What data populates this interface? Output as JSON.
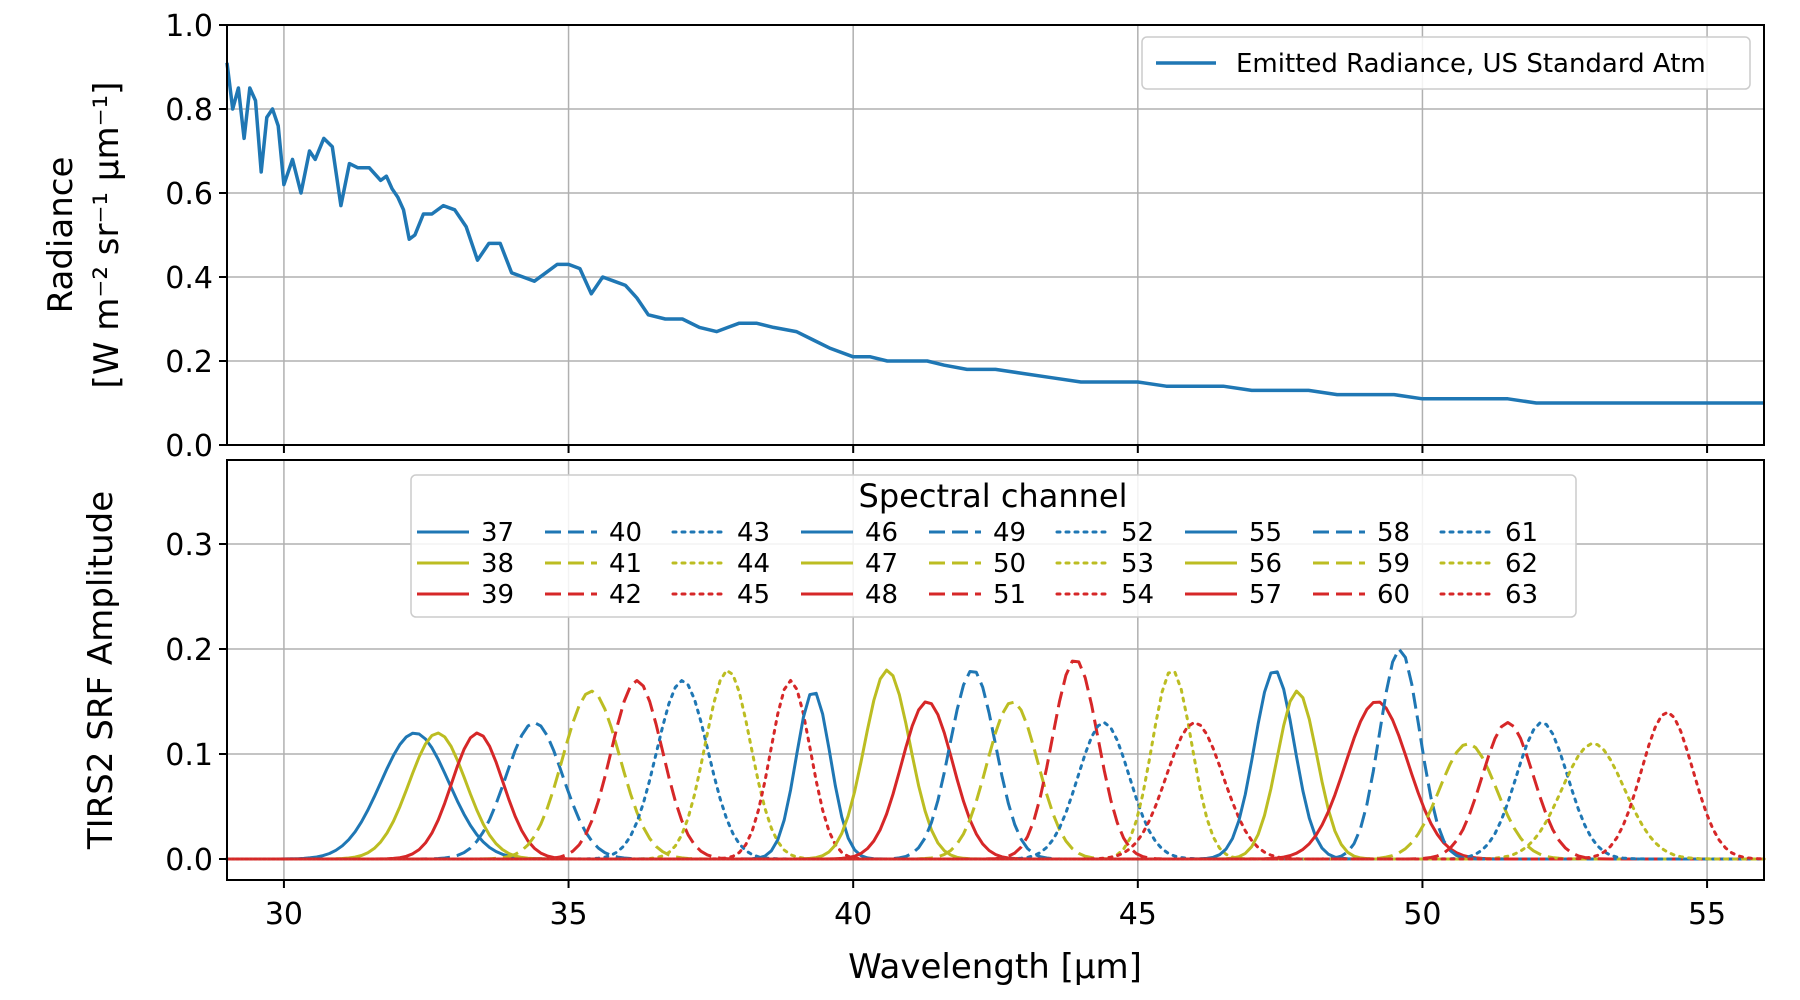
{
  "chart_data": [
    {
      "type": "line",
      "ylabel_line1": "Radiance",
      "ylabel_line2": "[W m⁻² sr⁻¹ μm⁻¹]",
      "xlim": [
        29,
        56
      ],
      "ylim": [
        0,
        1.0
      ],
      "yticks": [
        "0.0",
        "0.2",
        "0.4",
        "0.6",
        "0.8",
        "1.0"
      ],
      "grid": true,
      "legend_position": "top-right",
      "colors": {
        "series": "#1f77b4"
      },
      "series": [
        {
          "name": "Emitted Radiance, US Standard Atm",
          "x": [
            29.0,
            29.1,
            29.2,
            29.3,
            29.4,
            29.5,
            29.6,
            29.7,
            29.8,
            29.9,
            30.0,
            30.15,
            30.3,
            30.45,
            30.55,
            30.7,
            30.85,
            31.0,
            31.15,
            31.3,
            31.5,
            31.7,
            31.8,
            31.9,
            32.0,
            32.1,
            32.2,
            32.3,
            32.45,
            32.6,
            32.8,
            33.0,
            33.2,
            33.4,
            33.6,
            33.8,
            34.0,
            34.2,
            34.4,
            34.6,
            34.8,
            35.0,
            35.2,
            35.4,
            35.6,
            35.8,
            36.0,
            36.2,
            36.4,
            36.7,
            37.0,
            37.3,
            37.6,
            37.8,
            38.0,
            38.3,
            38.6,
            39.0,
            39.3,
            39.6,
            40.0,
            40.3,
            40.6,
            41.0,
            41.3,
            41.6,
            42.0,
            42.5,
            43.0,
            43.5,
            44.0,
            44.5,
            45.0,
            45.5,
            46.0,
            46.5,
            47.0,
            47.5,
            48.0,
            48.5,
            49.0,
            49.5,
            50.0,
            50.5,
            51.0,
            51.5,
            52.0,
            52.5,
            53.0,
            53.5,
            54.0,
            54.5,
            55.0,
            55.5,
            56.0
          ],
          "y": [
            0.91,
            0.8,
            0.85,
            0.73,
            0.85,
            0.82,
            0.65,
            0.78,
            0.8,
            0.76,
            0.62,
            0.68,
            0.6,
            0.7,
            0.68,
            0.73,
            0.71,
            0.57,
            0.67,
            0.66,
            0.66,
            0.63,
            0.64,
            0.61,
            0.59,
            0.56,
            0.49,
            0.5,
            0.55,
            0.55,
            0.57,
            0.56,
            0.52,
            0.44,
            0.48,
            0.48,
            0.41,
            0.4,
            0.39,
            0.41,
            0.43,
            0.43,
            0.42,
            0.36,
            0.4,
            0.39,
            0.38,
            0.35,
            0.31,
            0.3,
            0.3,
            0.28,
            0.27,
            0.28,
            0.29,
            0.29,
            0.28,
            0.27,
            0.25,
            0.23,
            0.21,
            0.21,
            0.2,
            0.2,
            0.2,
            0.19,
            0.18,
            0.18,
            0.17,
            0.16,
            0.15,
            0.15,
            0.15,
            0.14,
            0.14,
            0.14,
            0.13,
            0.13,
            0.13,
            0.12,
            0.12,
            0.12,
            0.11,
            0.11,
            0.11,
            0.11,
            0.1,
            0.1,
            0.1,
            0.1,
            0.1,
            0.1,
            0.1,
            0.1,
            0.1
          ]
        }
      ]
    },
    {
      "type": "line",
      "xlabel": "Wavelength [μm]",
      "ylabel": "TIRS2 SRF Amplitude",
      "xlim": [
        29,
        56
      ],
      "ylim": [
        -0.02,
        0.38
      ],
      "xticks": [
        "30",
        "35",
        "40",
        "45",
        "50",
        "55"
      ],
      "yticks": [
        "0.0",
        "0.1",
        "0.2",
        "0.3"
      ],
      "grid": true,
      "legend_position": "upper-center",
      "legend_title": "Spectral channel",
      "legend_ncol": 9,
      "colors": {
        "blue": "#1f77b4",
        "olive": "#bcbd22",
        "red": "#d62728"
      },
      "series": [
        {
          "name": "37",
          "center": 32.3,
          "width": 0.6,
          "peak": 0.12,
          "color": "#1f77b4",
          "dash": "solid"
        },
        {
          "name": "38",
          "center": 32.7,
          "width": 0.5,
          "peak": 0.12,
          "color": "#bcbd22",
          "dash": "solid"
        },
        {
          "name": "39",
          "center": 33.4,
          "width": 0.45,
          "peak": 0.12,
          "color": "#d62728",
          "dash": "solid"
        },
        {
          "name": "40",
          "center": 34.4,
          "width": 0.5,
          "peak": 0.13,
          "color": "#1f77b4",
          "dash": "dashed"
        },
        {
          "name": "41",
          "center": 35.4,
          "width": 0.5,
          "peak": 0.16,
          "color": "#bcbd22",
          "dash": "dashed"
        },
        {
          "name": "42",
          "center": 36.2,
          "width": 0.45,
          "peak": 0.17,
          "color": "#d62728",
          "dash": "dashed"
        },
        {
          "name": "43",
          "center": 37.0,
          "width": 0.45,
          "peak": 0.17,
          "color": "#1f77b4",
          "dash": "dotted"
        },
        {
          "name": "44",
          "center": 37.8,
          "width": 0.4,
          "peak": 0.18,
          "color": "#bcbd22",
          "dash": "dotted"
        },
        {
          "name": "45",
          "center": 38.9,
          "width": 0.35,
          "peak": 0.17,
          "color": "#d62728",
          "dash": "dotted"
        },
        {
          "name": "46",
          "center": 39.3,
          "width": 0.3,
          "peak": 0.16,
          "color": "#1f77b4",
          "dash": "solid"
        },
        {
          "name": "47",
          "center": 40.6,
          "width": 0.4,
          "peak": 0.18,
          "color": "#bcbd22",
          "dash": "solid"
        },
        {
          "name": "48",
          "center": 41.3,
          "width": 0.45,
          "peak": 0.15,
          "color": "#d62728",
          "dash": "solid"
        },
        {
          "name": "49",
          "center": 42.1,
          "width": 0.4,
          "peak": 0.18,
          "color": "#1f77b4",
          "dash": "dashed"
        },
        {
          "name": "50",
          "center": 42.8,
          "width": 0.45,
          "peak": 0.15,
          "color": "#bcbd22",
          "dash": "dashed"
        },
        {
          "name": "51",
          "center": 43.9,
          "width": 0.4,
          "peak": 0.19,
          "color": "#d62728",
          "dash": "dashed"
        },
        {
          "name": "52",
          "center": 44.4,
          "width": 0.45,
          "peak": 0.13,
          "color": "#1f77b4",
          "dash": "dotted"
        },
        {
          "name": "53",
          "center": 45.6,
          "width": 0.35,
          "peak": 0.18,
          "color": "#bcbd22",
          "dash": "dotted"
        },
        {
          "name": "54",
          "center": 46.0,
          "width": 0.5,
          "peak": 0.13,
          "color": "#d62728",
          "dash": "dotted"
        },
        {
          "name": "55",
          "center": 47.4,
          "width": 0.35,
          "peak": 0.18,
          "color": "#1f77b4",
          "dash": "solid"
        },
        {
          "name": "56",
          "center": 47.8,
          "width": 0.35,
          "peak": 0.16,
          "color": "#bcbd22",
          "dash": "solid"
        },
        {
          "name": "57",
          "center": 49.2,
          "width": 0.55,
          "peak": 0.15,
          "color": "#d62728",
          "dash": "solid"
        },
        {
          "name": "58",
          "center": 49.6,
          "width": 0.35,
          "peak": 0.2,
          "color": "#1f77b4",
          "dash": "dashed"
        },
        {
          "name": "59",
          "center": 50.8,
          "width": 0.5,
          "peak": 0.11,
          "color": "#bcbd22",
          "dash": "dashed"
        },
        {
          "name": "60",
          "center": 51.5,
          "width": 0.45,
          "peak": 0.13,
          "color": "#d62728",
          "dash": "dashed"
        },
        {
          "name": "61",
          "center": 52.1,
          "width": 0.45,
          "peak": 0.13,
          "color": "#1f77b4",
          "dash": "dotted"
        },
        {
          "name": "62",
          "center": 53.0,
          "width": 0.55,
          "peak": 0.11,
          "color": "#bcbd22",
          "dash": "dotted"
        },
        {
          "name": "63",
          "center": 54.3,
          "width": 0.45,
          "peak": 0.14,
          "color": "#d62728",
          "dash": "dotted"
        }
      ]
    }
  ]
}
